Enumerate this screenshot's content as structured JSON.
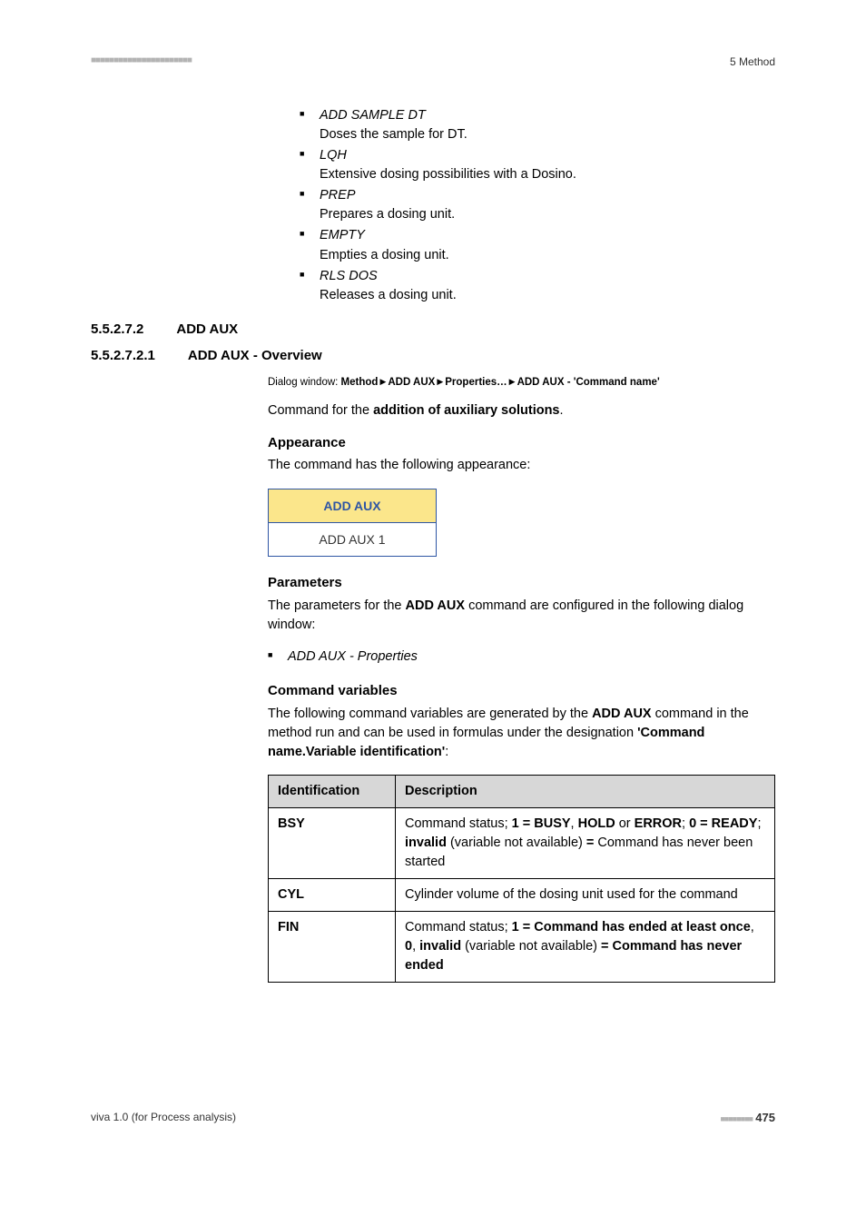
{
  "header": {
    "section_label": "5 Method"
  },
  "top_list": [
    {
      "title": "ADD SAMPLE DT",
      "desc": "Doses the sample for DT."
    },
    {
      "title": "LQH",
      "desc": "Extensive dosing possibilities with a Dosino."
    },
    {
      "title": "PREP",
      "desc": "Prepares a dosing unit."
    },
    {
      "title": "EMPTY",
      "desc": "Empties a dosing unit."
    },
    {
      "title": "RLS DOS",
      "desc": "Releases a dosing unit."
    }
  ],
  "h1": {
    "num": "5.5.2.7.2",
    "title": "ADD AUX"
  },
  "h2": {
    "num": "5.5.2.7.2.1",
    "title": "ADD AUX - Overview"
  },
  "dialog": {
    "prefix": "Dialog window: ",
    "p1": "Method",
    "p2": "ADD AUX",
    "p3": "Properties…",
    "p4": "ADD AUX - 'Command name'"
  },
  "cmd_for_pre": "Command for the ",
  "cmd_for_bold": "addition of auxiliary solutions",
  "appearance_head": "Appearance",
  "appearance_text": "The command has the following appearance:",
  "addaux_box": {
    "head": "ADD AUX",
    "body": "ADD AUX 1"
  },
  "params_head": "Parameters",
  "params_text_pre": "The parameters for the ",
  "params_text_bold": "ADD AUX",
  "params_text_post": " command are configured in the following dialog window:",
  "params_bullet": "ADD AUX - Properties",
  "cmdvars_head": "Command variables",
  "cmdvars_text_pre": "The following command variables are generated by the ",
  "cmdvars_text_bold": "ADD AUX",
  "cmdvars_text_mid": " command in the method run and can be used in formulas under the designation ",
  "cmdvars_text_bold2": "'Command name.Variable identification'",
  "cmdvars_text_post": ":",
  "table": {
    "col1": "Identification",
    "col2": "Description",
    "rows": [
      {
        "id": "BSY",
        "desc_parts": [
          {
            "t": "Command status; "
          },
          {
            "t": "1 = BUSY",
            "b": true
          },
          {
            "t": ", "
          },
          {
            "t": "HOLD",
            "b": true
          },
          {
            "t": " or "
          },
          {
            "t": "ERROR",
            "b": true
          },
          {
            "t": "; "
          },
          {
            "t": "0 = READY",
            "b": true
          },
          {
            "t": "; "
          },
          {
            "t": "invalid",
            "b": true
          },
          {
            "t": " (variable not available) "
          },
          {
            "t": "=",
            "b": true
          },
          {
            "t": " Command has never been started"
          }
        ]
      },
      {
        "id": "CYL",
        "desc_parts": [
          {
            "t": "Cylinder volume of the dosing unit used for the command"
          }
        ]
      },
      {
        "id": "FIN",
        "desc_parts": [
          {
            "t": "Command status; "
          },
          {
            "t": "1 = Command has ended at least once",
            "b": true
          },
          {
            "t": ", "
          },
          {
            "t": "0",
            "b": true
          },
          {
            "t": ", "
          },
          {
            "t": "invalid",
            "b": true
          },
          {
            "t": " (variable not available) "
          },
          {
            "t": "= Command has never ended",
            "b": true
          }
        ]
      }
    ]
  },
  "footer": {
    "left": "viva 1.0 (for Process analysis)",
    "page": "475"
  }
}
